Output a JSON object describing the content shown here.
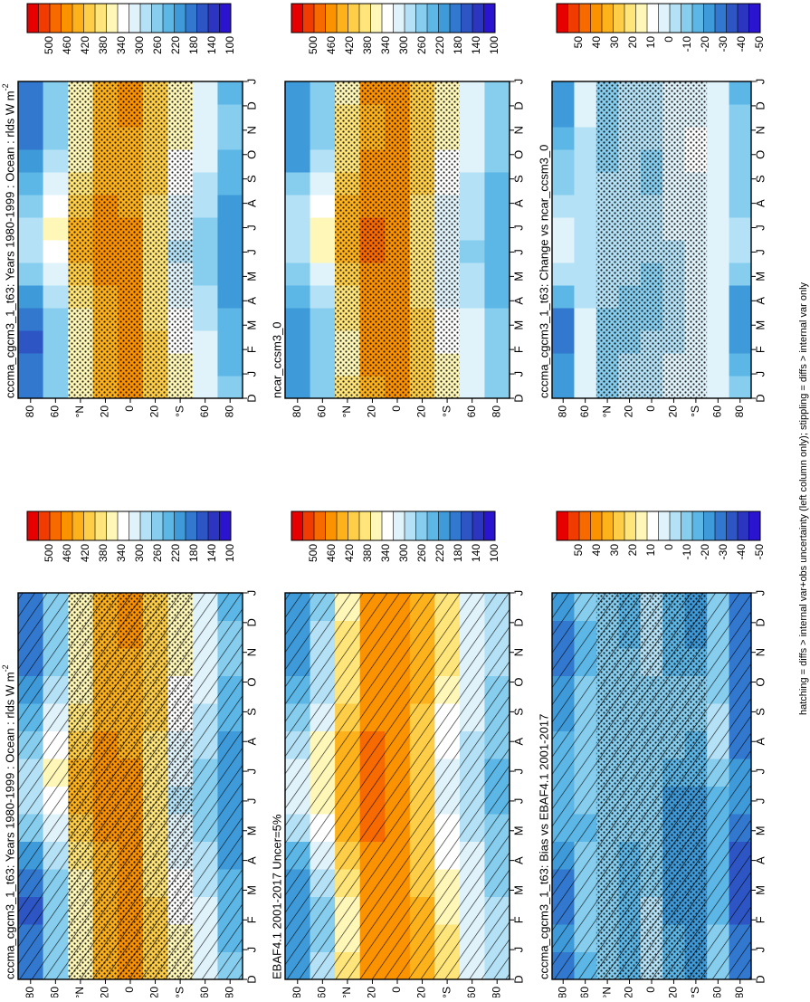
{
  "footer": {
    "note": "hatching = diffs > internal var+obs uncertainty (left column only); stippling = diffs > internal var only"
  },
  "colorbars": {
    "absolute": {
      "labels": [
        "500",
        "460",
        "420",
        "380",
        "340",
        "300",
        "260",
        "220",
        "180",
        "140",
        "100"
      ],
      "colors": [
        "#e60000",
        "#f03c00",
        "#f76a00",
        "#fb9200",
        "#fdb21c",
        "#fece48",
        "#ffe57a",
        "#fff7b8",
        "#ffffff",
        "#e0f3fb",
        "#b4e1f5",
        "#86cdee",
        "#5cb6e6",
        "#3e9ad9",
        "#3278cf",
        "#2d56c4",
        "#2b35c0",
        "#2a14d0"
      ]
    },
    "difference": {
      "labels": [
        "50",
        "40",
        "30",
        "20",
        "10",
        "0",
        "-10",
        "-20",
        "-30",
        "-40",
        "-50"
      ],
      "colors": [
        "#e60000",
        "#f03c00",
        "#f76a00",
        "#fb9200",
        "#fdb21c",
        "#fece48",
        "#ffe57a",
        "#fff7b8",
        "#ffffff",
        "#e0f3fb",
        "#b4e1f5",
        "#86cdee",
        "#5cb6e6",
        "#3e9ad9",
        "#3278cf",
        "#2d56c4",
        "#2b35c0",
        "#2a14d0"
      ]
    }
  },
  "axes": {
    "months": [
      "D",
      "J",
      "F",
      "M",
      "A",
      "M",
      "J",
      "J",
      "A",
      "S",
      "O",
      "N",
      "D",
      "J"
    ],
    "lat_labels": [
      "80",
      "60",
      "°N",
      "20",
      "0",
      "20",
      "°S",
      "60",
      "80"
    ]
  },
  "panels": [
    {
      "id": "p-model-left",
      "title": "cccma_cgcm3_1_t63: Years 1980-1999 : Ocean : rlds W m",
      "title_sup": "-2",
      "scale": "absolute",
      "field": "model",
      "hatching": true,
      "stippling": true
    },
    {
      "id": "p-obs",
      "title": "EBAF4.1 2001-2017 Uncer=5%",
      "title_sup": "",
      "scale": "absolute",
      "field": "obs",
      "hatching": true,
      "stippling": false
    },
    {
      "id": "p-bias",
      "title": "cccma_cgcm3_1_t63: Bias vs EBAF4.1 2001-2017",
      "title_sup": "",
      "scale": "difference",
      "field": "bias",
      "hatching": true,
      "stippling": true
    },
    {
      "id": "p-model-right",
      "title": "cccma_cgcm3_1_t63: Years 1980-1999 : Ocean : rlds W m",
      "title_sup": "-2",
      "scale": "absolute",
      "field": "model",
      "hatching": false,
      "stippling": true
    },
    {
      "id": "p-ncar",
      "title": "ncar_ccsm3_0",
      "title_sup": "",
      "scale": "absolute",
      "field": "ncar",
      "hatching": false,
      "stippling": true
    },
    {
      "id": "p-change",
      "title": "cccma_cgcm3_1_t63: Change vs ncar_ccsm3_0",
      "title_sup": "",
      "scale": "difference",
      "field": "change",
      "hatching": false,
      "stippling": true
    }
  ],
  "chart_data": [
    {
      "type": "heatmap",
      "title": "cccma_cgcm3_1_t63: Years 1980-1999 : Ocean : rlds W m-2",
      "x": [
        "D",
        "J",
        "F",
        "M",
        "A",
        "M",
        "J",
        "J",
        "A",
        "S",
        "O",
        "N",
        "D",
        "J"
      ],
      "y": [
        -80,
        -60,
        -40,
        -20,
        0,
        20,
        40,
        60,
        80
      ],
      "zlim": [
        100,
        500
      ],
      "values": [
        [
          240,
          230,
          220,
          215,
          205,
          205,
          205,
          205,
          205,
          215,
          225,
          235,
          240,
          230
        ],
        [
          290,
          285,
          280,
          275,
          265,
          255,
          250,
          255,
          265,
          275,
          285,
          290,
          290,
          285
        ],
        [
          330,
          325,
          315,
          305,
          290,
          280,
          275,
          280,
          290,
          305,
          320,
          330,
          330,
          325
        ],
        [
          375,
          380,
          370,
          360,
          350,
          345,
          345,
          350,
          360,
          370,
          375,
          378,
          375,
          380
        ],
        [
          415,
          420,
          420,
          415,
          415,
          415,
          415,
          415,
          410,
          405,
          405,
          410,
          415,
          420
        ],
        [
          400,
          405,
          405,
          405,
          410,
          420,
          425,
          425,
          420,
          410,
          405,
          400,
          400,
          405
        ],
        [
          330,
          325,
          325,
          335,
          355,
          375,
          390,
          390,
          380,
          360,
          340,
          330,
          330,
          325
        ],
        [
          245,
          240,
          240,
          250,
          265,
          290,
          320,
          325,
          310,
          285,
          260,
          245,
          245,
          240
        ],
        [
          175,
          170,
          165,
          175,
          200,
          240,
          265,
          270,
          255,
          220,
          195,
          180,
          175,
          170
        ]
      ]
    },
    {
      "type": "heatmap",
      "title": "EBAF4.1 2001-2017 Uncer=5%",
      "x": [
        "D",
        "J",
        "F",
        "M",
        "A",
        "M",
        "J",
        "J",
        "A",
        "S",
        "O",
        "N",
        "D",
        "J"
      ],
      "y": [
        -80,
        -60,
        -40,
        -20,
        0,
        20,
        40,
        60,
        80
      ],
      "zlim": [
        100,
        500
      ],
      "values": [
        [
          270,
          265,
          260,
          255,
          245,
          235,
          230,
          230,
          235,
          245,
          255,
          265,
          270,
          265
        ],
        [
          300,
          300,
          295,
          290,
          280,
          270,
          265,
          265,
          270,
          280,
          290,
          298,
          300,
          300
        ],
        [
          350,
          350,
          340,
          330,
          315,
          305,
          300,
          300,
          305,
          315,
          330,
          345,
          350,
          350
        ],
        [
          395,
          400,
          395,
          385,
          375,
          370,
          370,
          370,
          375,
          385,
          390,
          395,
          395,
          400
        ],
        [
          425,
          430,
          430,
          430,
          430,
          430,
          430,
          430,
          425,
          420,
          420,
          420,
          425,
          430
        ],
        [
          420,
          425,
          425,
          425,
          430,
          435,
          440,
          440,
          435,
          425,
          420,
          415,
          420,
          425
        ],
        [
          345,
          340,
          340,
          350,
          370,
          390,
          405,
          405,
          395,
          375,
          355,
          345,
          345,
          340
        ],
        [
          265,
          255,
          255,
          265,
          280,
          310,
          335,
          340,
          325,
          300,
          275,
          265,
          265,
          255
        ],
        [
          205,
          195,
          195,
          205,
          225,
          260,
          285,
          290,
          275,
          245,
          220,
          210,
          205,
          195
        ]
      ]
    },
    {
      "type": "heatmap",
      "title": "cccma_cgcm3_1_t63: Bias vs EBAF4.1 2001-2017",
      "x": [
        "D",
        "J",
        "F",
        "M",
        "A",
        "M",
        "J",
        "J",
        "A",
        "S",
        "O",
        "N",
        "D",
        "J"
      ],
      "y": [
        -80,
        -60,
        -40,
        -20,
        0,
        20,
        40,
        60,
        80
      ],
      "zlim": [
        -50,
        50
      ],
      "values": [
        [
          -30,
          -30,
          -35,
          -35,
          -35,
          -30,
          -25,
          -25,
          -30,
          -30,
          -30,
          -30,
          -30,
          -30
        ],
        [
          -15,
          -15,
          -20,
          -20,
          -20,
          -20,
          -20,
          -15,
          -10,
          -10,
          -15,
          -15,
          -15,
          -15
        ],
        [
          -25,
          -25,
          -25,
          -25,
          -25,
          -25,
          -25,
          -20,
          -20,
          -15,
          -15,
          -20,
          -25,
          -25
        ],
        [
          -20,
          -20,
          -25,
          -25,
          -25,
          -25,
          -25,
          -20,
          -15,
          -15,
          -15,
          -20,
          -20,
          -20
        ],
        [
          -10,
          -10,
          -10,
          -15,
          -15,
          -15,
          -15,
          -15,
          -15,
          -15,
          -15,
          -10,
          -10,
          -10
        ],
        [
          -20,
          -20,
          -20,
          -20,
          -20,
          -15,
          -15,
          -15,
          -15,
          -15,
          -15,
          -15,
          -20,
          -20
        ],
        [
          -15,
          -15,
          -15,
          -15,
          -15,
          -15,
          -15,
          -15,
          -15,
          -15,
          -15,
          -15,
          -15,
          -15
        ],
        [
          -20,
          -15,
          -15,
          -15,
          -15,
          -20,
          -15,
          -15,
          -15,
          -15,
          -15,
          -20,
          -20,
          -15
        ],
        [
          -30,
          -25,
          -30,
          -30,
          -25,
          -20,
          -20,
          -20,
          -20,
          -25,
          -25,
          -30,
          -30,
          -25
        ]
      ]
    },
    {
      "type": "heatmap",
      "title": "cccma_cgcm3_1_t63: Years 1980-1999 : Ocean : rlds W m-2",
      "x": [
        "D",
        "J",
        "F",
        "M",
        "A",
        "M",
        "J",
        "J",
        "A",
        "S",
        "O",
        "N",
        "D",
        "J"
      ],
      "y": [
        -80,
        -60,
        -40,
        -20,
        0,
        20,
        40,
        60,
        80
      ],
      "zlim": [
        100,
        500
      ],
      "values": [
        [
          240,
          230,
          220,
          215,
          205,
          205,
          205,
          205,
          205,
          215,
          225,
          235,
          240,
          230
        ],
        [
          290,
          285,
          280,
          275,
          265,
          255,
          250,
          255,
          265,
          275,
          285,
          290,
          290,
          285
        ],
        [
          330,
          325,
          315,
          305,
          290,
          280,
          275,
          280,
          290,
          305,
          320,
          330,
          330,
          325
        ],
        [
          375,
          380,
          370,
          360,
          350,
          345,
          345,
          350,
          360,
          370,
          375,
          378,
          375,
          380
        ],
        [
          415,
          420,
          420,
          415,
          415,
          415,
          415,
          415,
          410,
          405,
          405,
          410,
          415,
          420
        ],
        [
          400,
          405,
          405,
          405,
          410,
          420,
          425,
          425,
          420,
          410,
          405,
          400,
          400,
          405
        ],
        [
          330,
          325,
          325,
          335,
          355,
          375,
          390,
          390,
          380,
          360,
          340,
          330,
          330,
          325
        ],
        [
          245,
          240,
          240,
          250,
          265,
          290,
          320,
          325,
          310,
          285,
          260,
          245,
          245,
          240
        ],
        [
          175,
          170,
          165,
          175,
          200,
          240,
          265,
          270,
          255,
          220,
          195,
          180,
          175,
          170
        ]
      ]
    },
    {
      "type": "heatmap",
      "title": "ncar_ccsm3_0",
      "x": [
        "D",
        "J",
        "F",
        "M",
        "A",
        "M",
        "J",
        "J",
        "A",
        "S",
        "O",
        "N",
        "D",
        "J"
      ],
      "y": [
        -80,
        -60,
        -40,
        -20,
        0,
        20,
        40,
        60,
        80
      ],
      "zlim": [
        100,
        500
      ],
      "values": [
        [
          255,
          250,
          245,
          240,
          230,
          220,
          215,
          215,
          220,
          230,
          240,
          250,
          255,
          250
        ],
        [
          295,
          290,
          285,
          280,
          270,
          260,
          255,
          258,
          265,
          275,
          285,
          292,
          295,
          290
        ],
        [
          330,
          328,
          320,
          310,
          295,
          285,
          280,
          282,
          292,
          305,
          318,
          328,
          330,
          328
        ],
        [
          380,
          385,
          380,
          370,
          360,
          355,
          352,
          355,
          362,
          372,
          378,
          382,
          380,
          385
        ],
        [
          425,
          430,
          430,
          428,
          428,
          428,
          425,
          425,
          420,
          418,
          418,
          420,
          425,
          430
        ],
        [
          410,
          415,
          418,
          418,
          422,
          430,
          435,
          435,
          430,
          420,
          412,
          408,
          410,
          415
        ],
        [
          345,
          340,
          340,
          348,
          365,
          385,
          400,
          400,
          390,
          370,
          352,
          345,
          345,
          340
        ],
        [
          250,
          245,
          245,
          255,
          272,
          300,
          330,
          335,
          318,
          292,
          268,
          252,
          250,
          245
        ],
        [
          200,
          195,
          195,
          200,
          215,
          245,
          270,
          275,
          262,
          235,
          210,
          200,
          200,
          195
        ]
      ]
    },
    {
      "type": "heatmap",
      "title": "cccma_cgcm3_1_t63: Change vs ncar_ccsm3_0",
      "x": [
        "D",
        "J",
        "F",
        "M",
        "A",
        "M",
        "J",
        "J",
        "A",
        "S",
        "O",
        "N",
        "D",
        "J"
      ],
      "y": [
        -80,
        -60,
        -40,
        -20,
        0,
        20,
        40,
        60,
        80
      ],
      "zlim": [
        -50,
        50
      ],
      "values": [
        [
          -15,
          -20,
          -25,
          -25,
          -25,
          -15,
          -10,
          -10,
          -15,
          -15,
          -15,
          -15,
          -15,
          -20
        ],
        [
          -5,
          -5,
          -5,
          -5,
          -5,
          -5,
          -5,
          -3,
          0,
          0,
          0,
          -3,
          -5,
          -5
        ],
        [
          0,
          -3,
          -5,
          -5,
          -5,
          -5,
          -5,
          -2,
          -2,
          0,
          2,
          2,
          0,
          -3
        ],
        [
          -5,
          -5,
          -10,
          -10,
          -10,
          -10,
          -7,
          -5,
          -2,
          -2,
          -3,
          -4,
          -5,
          -5
        ],
        [
          -10,
          -10,
          -10,
          -12,
          -13,
          -13,
          -10,
          -10,
          -10,
          -13,
          -13,
          -10,
          -10,
          -10
        ],
        [
          -10,
          -10,
          -13,
          -13,
          -12,
          -10,
          -10,
          -10,
          -10,
          -10,
          -7,
          -8,
          -10,
          -10
        ],
        [
          -15,
          -15,
          -15,
          -13,
          -10,
          -10,
          -10,
          -10,
          -10,
          -10,
          -12,
          -15,
          -15,
          -15
        ],
        [
          -5,
          -5,
          -5,
          -5,
          -7,
          -10,
          -10,
          -10,
          -8,
          -7,
          -7,
          -7,
          -5,
          -5
        ],
        [
          -25,
          -25,
          -30,
          -30,
          -20,
          -10,
          -5,
          -5,
          -7,
          -15,
          -15,
          -20,
          -25,
          -25
        ]
      ]
    }
  ]
}
